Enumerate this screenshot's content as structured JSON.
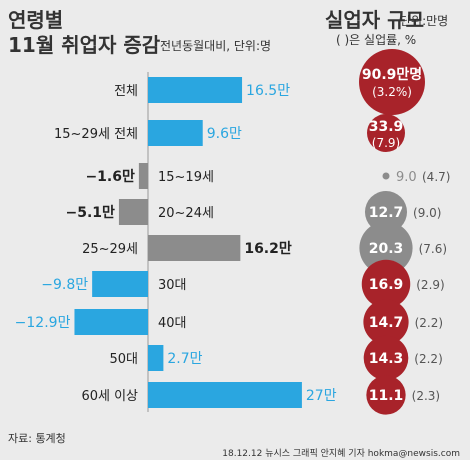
{
  "header": {
    "title_line1": "연령별",
    "title_line2": "11월 취업자 증감",
    "subtitle": "전년동월대비, 단위:명",
    "right_title": "실업자 규모",
    "right_unit": "단위:만명",
    "right_note": "( )은 실업률, %"
  },
  "footer": {
    "source": "자료: 통계청",
    "credit": "18.12.12 뉴시스 그래픽 안지혜 기자 hokma@newsis.com"
  },
  "colors": {
    "positive": "#2aa6e0",
    "negative": "#8c8c8c",
    "negative_label_young": "#2aa6e0",
    "circle": "#a8232a",
    "circle_gray": "#8c8c8c",
    "background": "#ebebeb"
  },
  "chart_data": [
    {
      "type": "bar",
      "orientation": "horizontal",
      "title": "11월 취업자 증감",
      "unit": "만명",
      "categories": [
        "전체",
        "15~29세 전체",
        "15~19세",
        "20~24세",
        "25~29세",
        "30대",
        "40대",
        "50대",
        "60세 이상"
      ],
      "values": [
        16.5,
        9.6,
        -1.6,
        -5.1,
        16.2,
        -9.8,
        -12.9,
        2.7,
        27.0
      ],
      "value_labels": [
        "16.5만",
        "9.6만",
        "−1.6만",
        "−5.1만",
        "16.2만",
        "−9.8만",
        "−12.9만",
        "2.7만",
        "27만"
      ],
      "bar_colors": [
        "#2aa6e0",
        "#2aa6e0",
        "#8c8c8c",
        "#8c8c8c",
        "#8c8c8c",
        "#2aa6e0",
        "#2aa6e0",
        "#2aa6e0",
        "#2aa6e0"
      ],
      "label_colors": [
        "#2aa6e0",
        "#2aa6e0",
        "#222222",
        "#222222",
        "#222222",
        "#2aa6e0",
        "#2aa6e0",
        "#2aa6e0",
        "#2aa6e0"
      ]
    },
    {
      "type": "scatter",
      "title": "실업자 규모",
      "unit": "만명",
      "categories": [
        "전체",
        "15~29세 전체",
        "15~19세",
        "20~24세",
        "25~29세",
        "30대",
        "40대",
        "50대",
        "60세 이상"
      ],
      "unemployed": [
        90.9,
        33.9,
        9.0,
        12.7,
        20.3,
        16.9,
        14.7,
        14.3,
        11.1
      ],
      "unemployed_labels": [
        "90.9만명",
        "33.9",
        "9.0",
        "12.7",
        "20.3",
        "16.9",
        "14.7",
        "14.3",
        "11.1"
      ],
      "unemployment_rate": [
        3.2,
        7.9,
        4.7,
        9.0,
        7.6,
        2.9,
        2.2,
        2.2,
        2.3
      ],
      "rate_labels": [
        "(3.2%)",
        "(7.9)",
        "(4.7)",
        "(9.0)",
        "(7.6)",
        "(2.9)",
        "(2.2)",
        "(2.2)",
        "(2.3)"
      ],
      "circle_colors": [
        "#a8232a",
        "#a8232a",
        "#8c8c8c",
        "#8c8c8c",
        "#8c8c8c",
        "#a8232a",
        "#a8232a",
        "#a8232a",
        "#a8232a"
      ]
    }
  ]
}
